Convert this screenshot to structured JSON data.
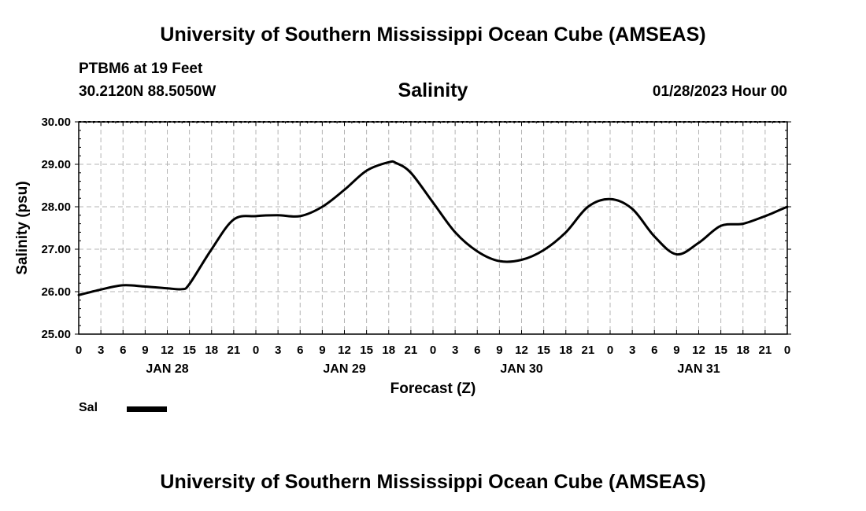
{
  "header": {
    "title": "University of Southern Mississippi Ocean Cube (AMSEAS)",
    "station": "PTBM6 at 19 Feet",
    "coordinates": "30.2120N  88.5050W",
    "datetime": "01/28/2023 Hour 00"
  },
  "footer": {
    "title": "University of Southern Mississippi Ocean Cube (AMSEAS)"
  },
  "legend": {
    "label": "Sal"
  },
  "chart_data": {
    "type": "line",
    "title": "Salinity",
    "xlabel": "Forecast (Z)",
    "ylabel": "Salinity (psu)",
    "ylim": [
      25.0,
      30.0
    ],
    "xlim": [
      0,
      96
    ],
    "grid": true,
    "legend_placement": "bottom-left",
    "yticks": [
      "25.00",
      "26.00",
      "27.00",
      "28.00",
      "29.00",
      "30.00"
    ],
    "yticks_values": [
      25,
      26,
      27,
      28,
      29,
      30
    ],
    "xtick_hours": [
      0,
      3,
      6,
      9,
      12,
      15,
      18,
      21,
      24,
      27,
      30,
      33,
      36,
      39,
      42,
      45,
      48,
      51,
      54,
      57,
      60,
      63,
      66,
      69,
      72,
      75,
      78,
      81,
      84,
      87,
      90,
      93,
      96
    ],
    "xtick_labels": [
      "0",
      "3",
      "6",
      "9",
      "12",
      "15",
      "18",
      "21",
      "0",
      "3",
      "6",
      "9",
      "12",
      "15",
      "18",
      "21",
      "0",
      "3",
      "6",
      "9",
      "12",
      "15",
      "18",
      "21",
      "0",
      "3",
      "6",
      "9",
      "12",
      "15",
      "18",
      "21",
      "0"
    ],
    "day_labels": [
      {
        "hour": 12,
        "label": "JAN 28"
      },
      {
        "hour": 36,
        "label": "JAN 29"
      },
      {
        "hour": 60,
        "label": "JAN 30"
      },
      {
        "hour": 84,
        "label": "JAN 31"
      }
    ],
    "series": [
      {
        "name": "Sal",
        "color": "#000000",
        "x": [
          0,
          3,
          6,
          9,
          12,
          14,
          15,
          18,
          21,
          24,
          27,
          30,
          33,
          36,
          39,
          42,
          43,
          45,
          48,
          51,
          54,
          57,
          60,
          63,
          66,
          69,
          72,
          75,
          78,
          81,
          84,
          87,
          90,
          93,
          94,
          96
        ],
        "values": [
          25.92,
          26.05,
          26.15,
          26.12,
          26.08,
          26.06,
          26.18,
          27.0,
          27.7,
          27.78,
          27.8,
          27.78,
          28.0,
          28.4,
          28.85,
          29.05,
          29.03,
          28.8,
          28.1,
          27.4,
          26.95,
          26.72,
          26.75,
          26.98,
          27.4,
          28.0,
          28.18,
          27.95,
          27.3,
          26.88,
          27.15,
          27.55,
          27.6,
          27.78,
          27.85,
          28.0
        ]
      }
    ]
  }
}
